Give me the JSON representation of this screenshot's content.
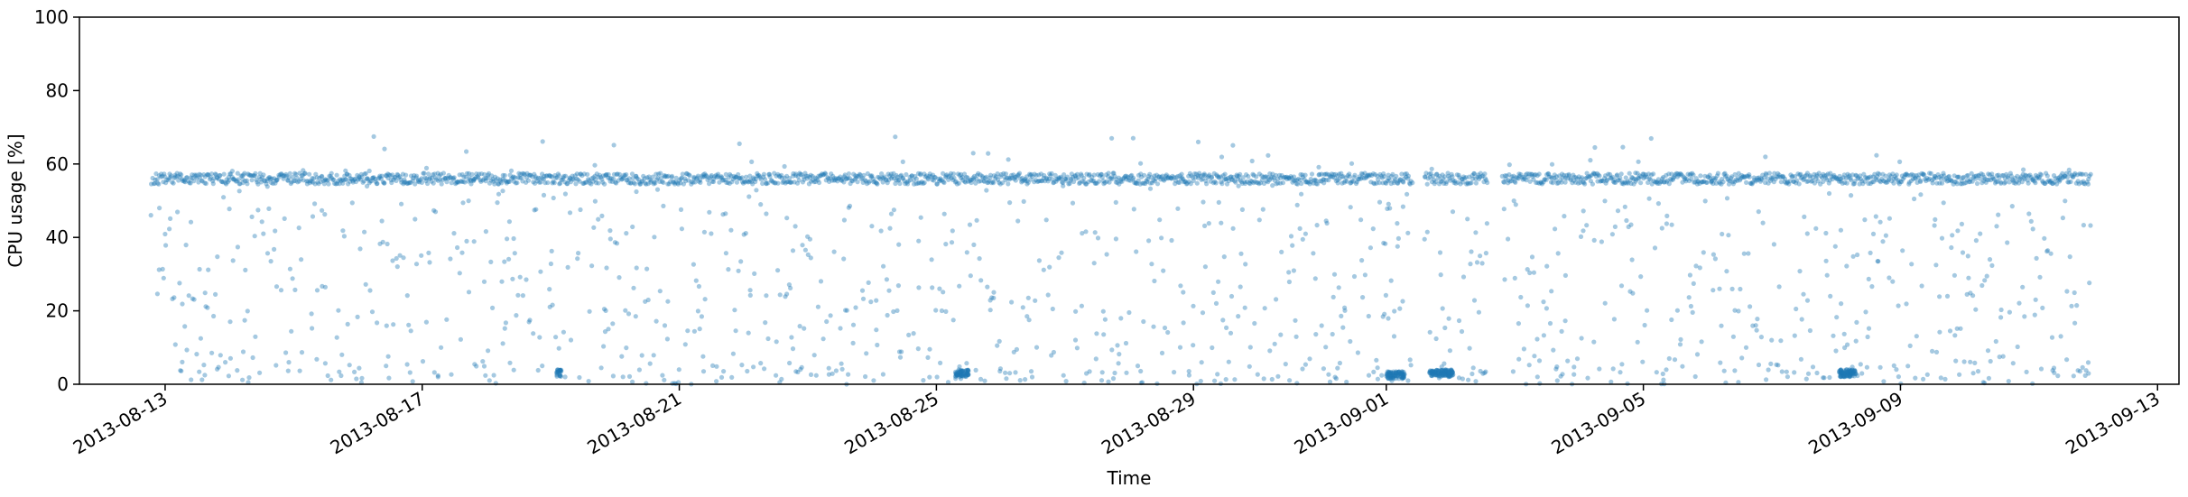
{
  "chart_data": {
    "type": "scatter",
    "title": "",
    "xlabel": "Time",
    "ylabel": "CPU usage [%]",
    "ylim": [
      0,
      100
    ],
    "xlim": [
      "2013-08-11T16:00",
      "2013-09-13T08:00"
    ],
    "x_ticks": [
      "2013-08-13",
      "2013-08-17",
      "2013-08-21",
      "2013-08-25",
      "2013-08-29",
      "2013-09-01",
      "2013-09-05",
      "2013-09-09",
      "2013-09-13"
    ],
    "y_ticks": [
      0,
      20,
      40,
      60,
      80,
      100
    ],
    "grid": false,
    "legend": "none",
    "marker_color": "#1f77b4",
    "marker_alpha": 0.4,
    "series": [
      {
        "x_start": "2013-08-12T19:00",
        "x_end": "2013-09-11T23:00",
        "baseline_y": 56,
        "scatter_y_range": [
          0,
          68
        ],
        "gaps": [
          [
            "2013-09-01T10:00",
            "2013-09-01T14:00"
          ],
          [
            "2013-09-02T14:00",
            "2013-09-02T19:00"
          ]
        ],
        "low_clusters": [
          {
            "x_start": "2013-09-01T00:00",
            "x_end": "2013-09-01T07:00",
            "y": 2.5
          },
          {
            "x_start": "2013-09-01T16:00",
            "x_end": "2013-09-02T01:00",
            "y": 3
          },
          {
            "x_start": "2013-08-25T07:00",
            "x_end": "2013-08-25T12:00",
            "y": 3
          },
          {
            "x_start": "2013-09-08T01:00",
            "x_end": "2013-09-08T08:00",
            "y": 3
          },
          {
            "x_start": "2013-08-19T02:00",
            "x_end": "2013-08-19T04:00",
            "y": 3
          }
        ]
      }
    ]
  }
}
